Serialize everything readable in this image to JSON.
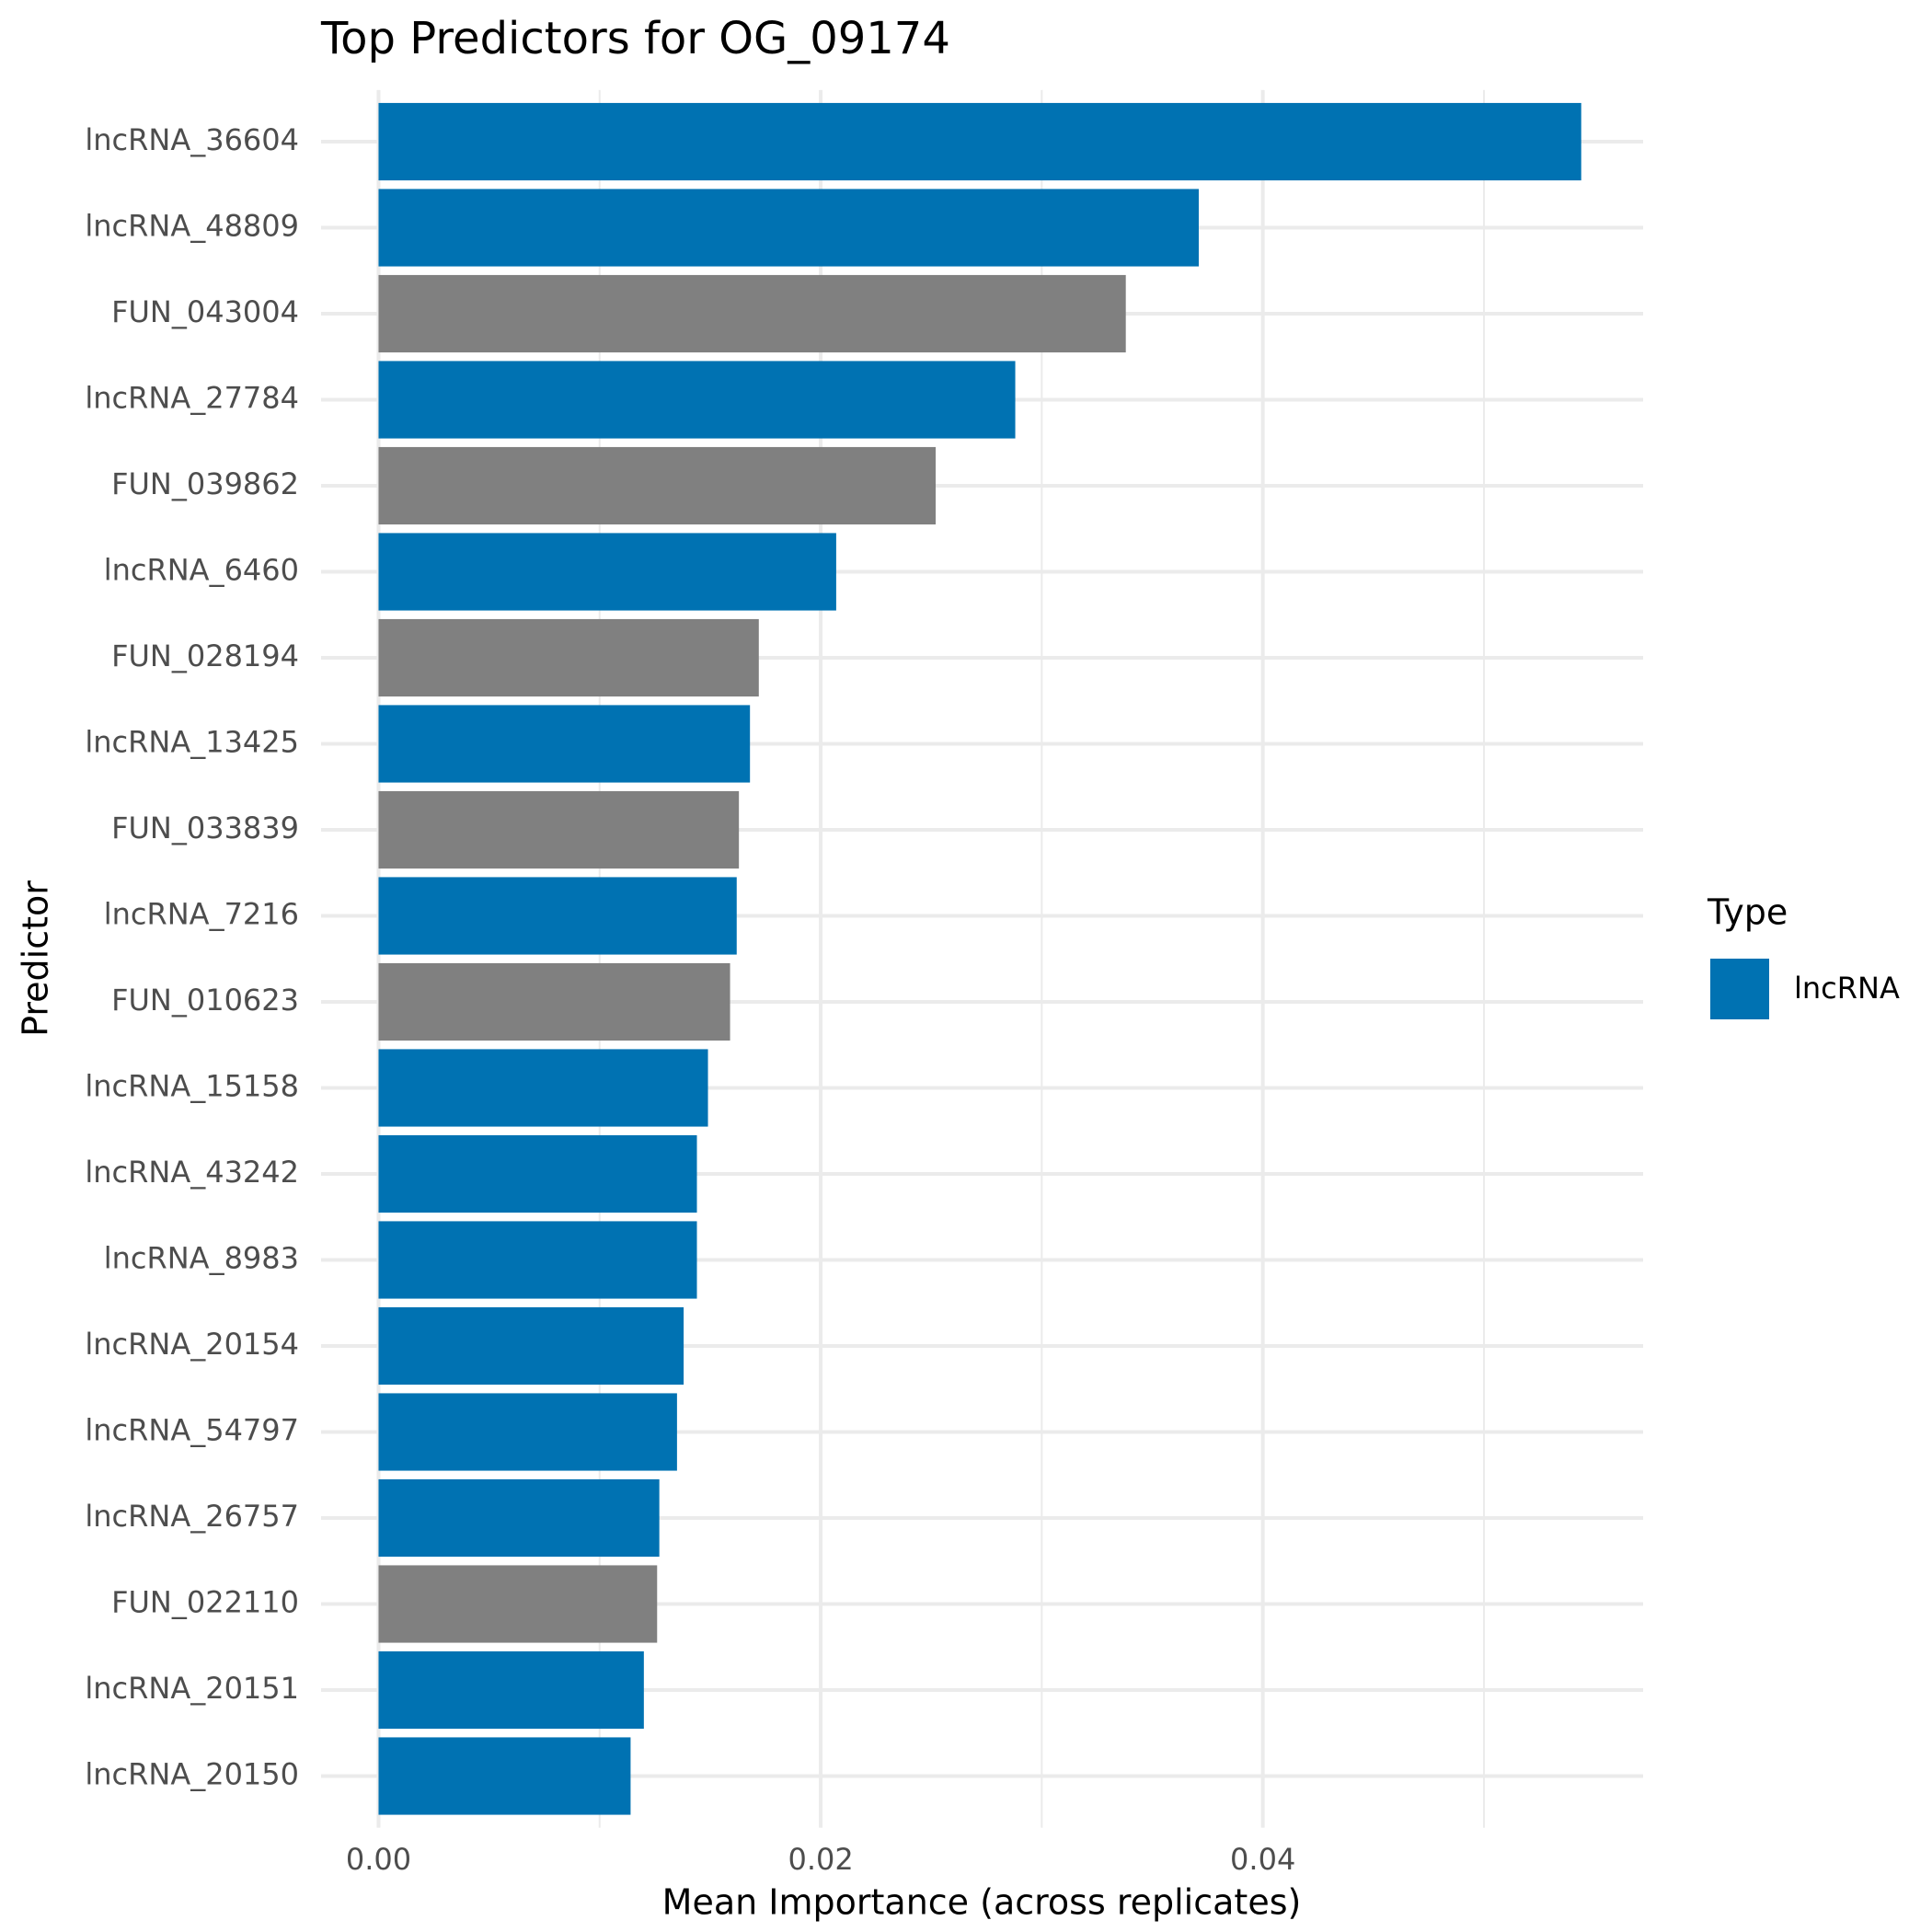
{
  "chart_data": {
    "type": "bar",
    "orientation": "horizontal",
    "title": "Top Predictors for OG_09174",
    "x_label": "Mean Importance (across replicates)",
    "y_label": "Predictor",
    "categories": [
      "lncRNA_36604",
      "lncRNA_48809",
      "FUN_043004",
      "lncRNA_27784",
      "FUN_039862",
      "lncRNA_6460",
      "FUN_028194",
      "lncRNA_13425",
      "FUN_033839",
      "lncRNA_7216",
      "FUN_010623",
      "lncRNA_15158",
      "lncRNA_43242",
      "lncRNA_8983",
      "lncRNA_20154",
      "lncRNA_54797",
      "lncRNA_26757",
      "FUN_022110",
      "lncRNA_20151",
      "lncRNA_20150"
    ],
    "values": [
      0.0544,
      0.0371,
      0.0338,
      0.0288,
      0.0252,
      0.0207,
      0.0172,
      0.0168,
      0.0163,
      0.0162,
      0.0159,
      0.0149,
      0.0144,
      0.0144,
      0.0138,
      0.0135,
      0.0127,
      0.0126,
      0.012,
      0.0114
    ],
    "colors": [
      "#0072B2",
      "#0072B2",
      "#808080",
      "#0072B2",
      "#808080",
      "#0072B2",
      "#808080",
      "#0072B2",
      "#808080",
      "#0072B2",
      "#808080",
      "#0072B2",
      "#0072B2",
      "#0072B2",
      "#0072B2",
      "#0072B2",
      "#0072B2",
      "#808080",
      "#0072B2",
      "#0072B2"
    ],
    "xlim": [
      -0.0026,
      0.0572
    ],
    "xticks": [
      {
        "value": 0,
        "label": "0.00"
      },
      0.02,
      0.04
    ],
    "minor_xticks": [
      0.01,
      0.03,
      0.05
    ],
    "grid": true,
    "legend": {
      "title": "Type",
      "position": "right",
      "items": [
        {
          "name": "lncRNA",
          "color": "#0072B2"
        }
      ]
    }
  }
}
